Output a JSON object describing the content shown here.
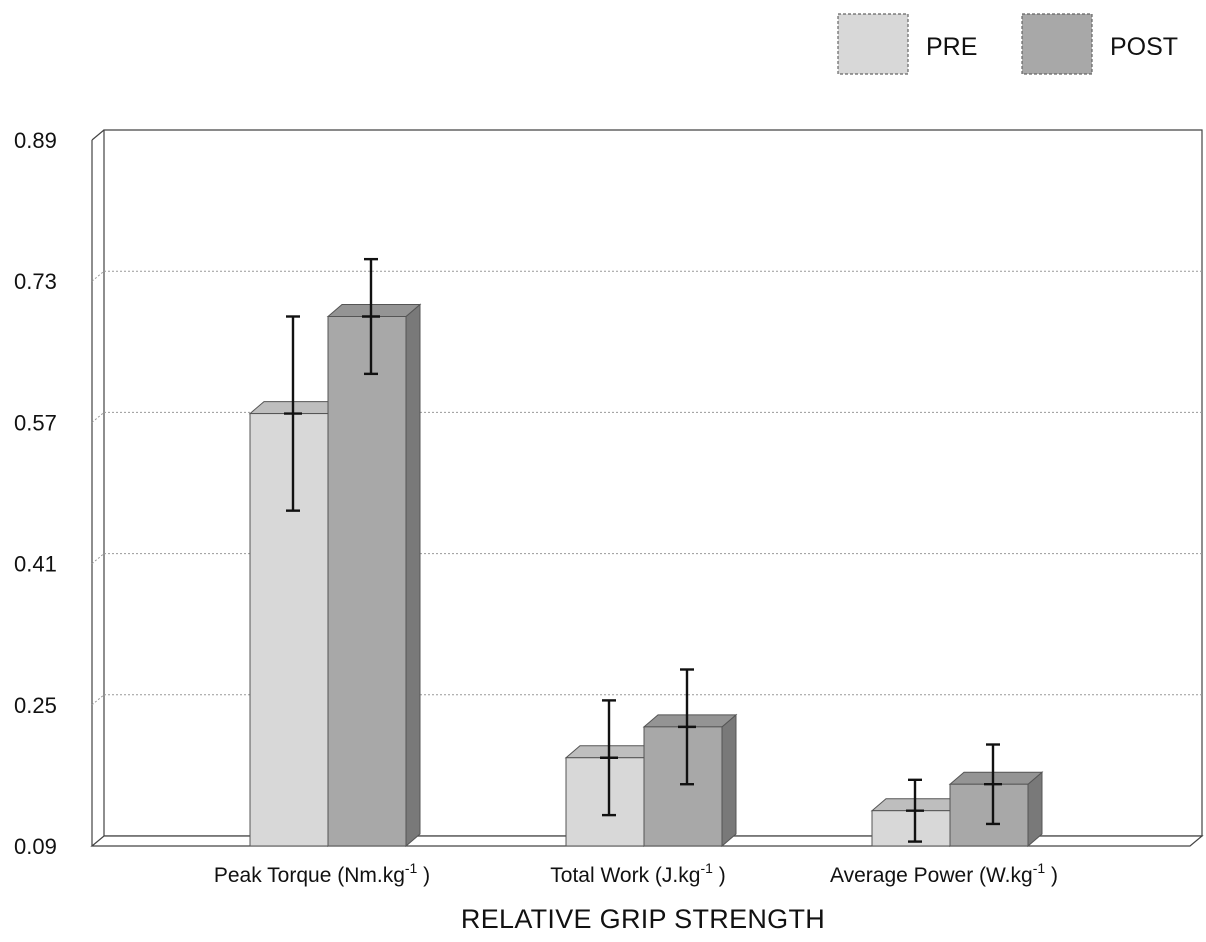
{
  "chart_data": {
    "type": "bar",
    "style": "3d-clustered",
    "title": "",
    "xlabel": "RELATIVE GRIP STRENGTH",
    "ylabel": "",
    "ylim": [
      0.09,
      0.89
    ],
    "yticks": [
      "0.89",
      "0.73",
      "0.57",
      "0.41",
      "0.25",
      "0.09"
    ],
    "grid": true,
    "legend_position": "top-right",
    "categories": [
      {
        "label": "Peak Torque (Nm.kg",
        "sup": "-1",
        "close": " )"
      },
      {
        "label": "Total Work (J.kg",
        "sup": "-1",
        "close": " )"
      },
      {
        "label": "Average Power (W.kg",
        "sup": "-1",
        "close": " )"
      }
    ],
    "series": [
      {
        "name": "PRE",
        "color": "#d8d8d8",
        "values": [
          0.58,
          0.19,
          0.13
        ],
        "error": [
          0.11,
          0.065,
          0.035
        ]
      },
      {
        "name": "POST",
        "color": "#a8a8a8",
        "values": [
          0.69,
          0.225,
          0.16
        ],
        "error": [
          0.065,
          0.065,
          0.045
        ]
      }
    ]
  }
}
